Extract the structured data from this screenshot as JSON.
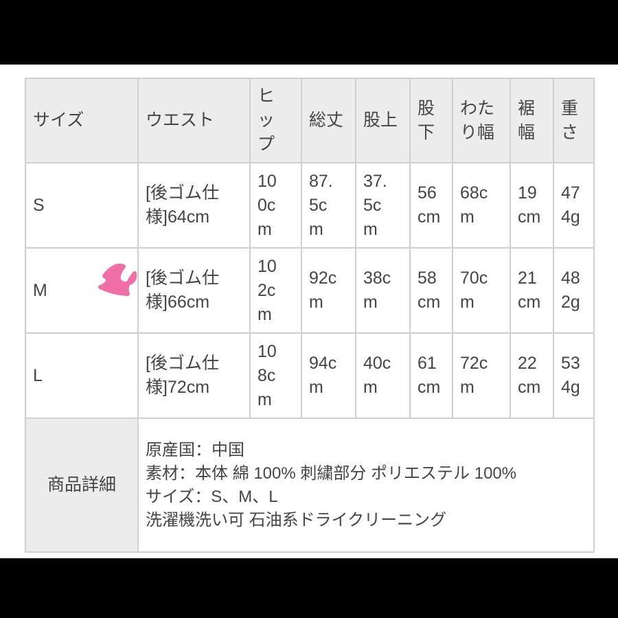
{
  "table": {
    "headers": [
      "サイズ",
      "ウエスト",
      "ヒップ",
      "総丈",
      "股上",
      "股下",
      "わたり幅",
      "裾幅",
      "重さ"
    ],
    "rows": [
      {
        "size": "S",
        "waist": "[後ゴム仕様]64cm",
        "hip": "100cm",
        "total_length": "87.5cm",
        "rise": "37.5cm",
        "inseam": "56cm",
        "thigh": "68cm",
        "hem": "19cm",
        "weight": "474g"
      },
      {
        "size": "M",
        "waist": "[後ゴム仕様]66cm",
        "hip": "102cm",
        "total_length": "92cm",
        "rise": "38cm",
        "inseam": "58cm",
        "thigh": "70cm",
        "hem": "21cm",
        "weight": "482g"
      },
      {
        "size": "L",
        "waist": "[後ゴム仕様]72cm",
        "hip": "108cm",
        "total_length": "94cm",
        "rise": "40cm",
        "inseam": "61cm",
        "thigh": "72cm",
        "hem": "22cm",
        "weight": "534g"
      }
    ],
    "details_label": "商品詳細",
    "details": [
      "原産国：中国",
      "素材：本体 綿 100% 刺繍部分 ポリエステル 100%",
      "サイズ：S、M、L",
      "洗濯機洗い可 石油系ドライクリーニング"
    ]
  },
  "annotation": {
    "color": "#ef6fa6"
  }
}
